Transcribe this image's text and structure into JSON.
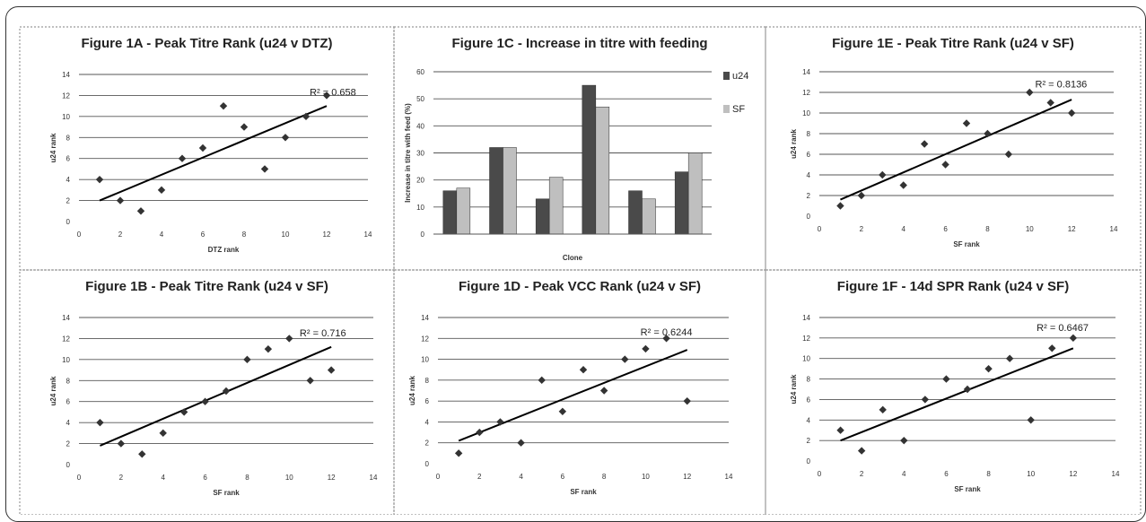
{
  "chart_data": [
    {
      "id": "fig1a",
      "type": "scatter",
      "title": "Figure 1A - Peak Titre Rank (u24 v DTZ)",
      "xlabel": "DTZ rank",
      "ylabel": "u24 rank",
      "xlim": [
        0,
        14
      ],
      "ylim": [
        0,
        14
      ],
      "xticks": [
        "0",
        "2",
        "4",
        "6",
        "8",
        "10",
        "12",
        "14"
      ],
      "yticks": [
        "0",
        "2",
        "4",
        "6",
        "8",
        "10",
        "12",
        "14"
      ],
      "points": [
        [
          1,
          4
        ],
        [
          2,
          2
        ],
        [
          3,
          1
        ],
        [
          4,
          3
        ],
        [
          5,
          6
        ],
        [
          6,
          7
        ],
        [
          7,
          11
        ],
        [
          8,
          9
        ],
        [
          9,
          5
        ],
        [
          10,
          8
        ],
        [
          11,
          10
        ],
        [
          12,
          12
        ]
      ],
      "trendline": [
        [
          1,
          2.0
        ],
        [
          12,
          11.0
        ]
      ],
      "r2_label": "R² = 0.658",
      "r2_pos": [
        12.3,
        12.0
      ]
    },
    {
      "id": "fig1b",
      "type": "scatter",
      "title": "Figure 1B - Peak Titre Rank (u24 v SF)",
      "xlabel": "SF rank",
      "ylabel": "u24 rank",
      "xlim": [
        0,
        14
      ],
      "ylim": [
        0,
        14
      ],
      "xticks": [
        "0",
        "2",
        "4",
        "6",
        "8",
        "10",
        "12",
        "14"
      ],
      "yticks": [
        "0",
        "2",
        "4",
        "6",
        "8",
        "10",
        "12",
        "14"
      ],
      "points": [
        [
          1,
          4
        ],
        [
          2,
          2
        ],
        [
          3,
          1
        ],
        [
          4,
          3
        ],
        [
          5,
          5
        ],
        [
          6,
          6
        ],
        [
          7,
          7
        ],
        [
          8,
          10
        ],
        [
          9,
          11
        ],
        [
          10,
          12
        ],
        [
          11,
          8
        ],
        [
          12,
          9
        ]
      ],
      "trendline": [
        [
          1,
          1.8
        ],
        [
          12,
          11.2
        ]
      ],
      "r2_label": "R² = 0.716",
      "r2_pos": [
        11.6,
        12.2
      ]
    },
    {
      "id": "fig1c",
      "type": "bar",
      "title": "Figure 1C - Increase in titre with feeding",
      "xlabel": "Clone",
      "ylabel": "Increase in titre with feed (%)",
      "ylim": [
        0,
        60
      ],
      "yticks": [
        "0",
        "10",
        "20",
        "30",
        "40",
        "50",
        "60"
      ],
      "categories": [
        "",
        "",
        "",
        "",
        "",
        ""
      ],
      "series": [
        {
          "name": "u24",
          "color": "#4a4a4a",
          "values": [
            16,
            32,
            13,
            55,
            16,
            23
          ]
        },
        {
          "name": "SF",
          "color": "#bfbfbf",
          "values": [
            17,
            32,
            21,
            47,
            13,
            30
          ]
        }
      ]
    },
    {
      "id": "fig1d",
      "type": "scatter",
      "title": "Figure 1D - Peak VCC Rank (u24 v SF)",
      "xlabel": "SF rank",
      "ylabel": "u24 rank",
      "xlim": [
        0,
        14
      ],
      "ylim": [
        0,
        14
      ],
      "xticks": [
        "0",
        "2",
        "4",
        "6",
        "8",
        "10",
        "12",
        "14"
      ],
      "yticks": [
        "0",
        "2",
        "4",
        "6",
        "8",
        "10",
        "12",
        "14"
      ],
      "points": [
        [
          1,
          1
        ],
        [
          2,
          3
        ],
        [
          3,
          4
        ],
        [
          4,
          2
        ],
        [
          5,
          8
        ],
        [
          6,
          5
        ],
        [
          7,
          9
        ],
        [
          8,
          7
        ],
        [
          9,
          10
        ],
        [
          10,
          11
        ],
        [
          11,
          12
        ],
        [
          12,
          6
        ]
      ],
      "trendline": [
        [
          1,
          2.2
        ],
        [
          12,
          10.9
        ]
      ],
      "r2_label": "R² = 0.6244",
      "r2_pos": [
        11.0,
        12.3
      ]
    },
    {
      "id": "fig1e",
      "type": "scatter",
      "title": "Figure 1E - Peak Titre Rank (u24 v SF)",
      "xlabel": "SF rank",
      "ylabel": "u24 rank",
      "xlim": [
        0,
        14
      ],
      "ylim": [
        0,
        14
      ],
      "xticks": [
        "0",
        "2",
        "4",
        "6",
        "8",
        "10",
        "12",
        "14"
      ],
      "yticks": [
        "0",
        "2",
        "4",
        "6",
        "8",
        "10",
        "12",
        "14"
      ],
      "points": [
        [
          1,
          1
        ],
        [
          2,
          2
        ],
        [
          3,
          4
        ],
        [
          4,
          3
        ],
        [
          5,
          7
        ],
        [
          6,
          5
        ],
        [
          7,
          9
        ],
        [
          8,
          8
        ],
        [
          9,
          6
        ],
        [
          10,
          12
        ],
        [
          11,
          11
        ],
        [
          12,
          10
        ]
      ],
      "trendline": [
        [
          1,
          1.6
        ],
        [
          12,
          11.3
        ]
      ],
      "r2_label": "R² = 0.8136",
      "r2_pos": [
        11.5,
        12.5
      ]
    },
    {
      "id": "fig1f",
      "type": "scatter",
      "title": "Figure 1F - 14d SPR Rank (u24 v SF)",
      "xlabel": "SF rank",
      "ylabel": "u24 rank",
      "xlim": [
        0,
        14
      ],
      "ylim": [
        0,
        14
      ],
      "xticks": [
        "0",
        "2",
        "4",
        "6",
        "8",
        "10",
        "12",
        "14"
      ],
      "yticks": [
        "0",
        "2",
        "4",
        "6",
        "8",
        "10",
        "12",
        "14"
      ],
      "points": [
        [
          1,
          3
        ],
        [
          2,
          1
        ],
        [
          3,
          5
        ],
        [
          4,
          2
        ],
        [
          5,
          6
        ],
        [
          6,
          8
        ],
        [
          7,
          7
        ],
        [
          8,
          9
        ],
        [
          9,
          10
        ],
        [
          10,
          4
        ],
        [
          11,
          11
        ],
        [
          12,
          12
        ]
      ],
      "trendline": [
        [
          1,
          2.0
        ],
        [
          12,
          11.0
        ]
      ],
      "r2_label": "R² = 0.6467",
      "r2_pos": [
        11.5,
        12.7
      ]
    }
  ]
}
